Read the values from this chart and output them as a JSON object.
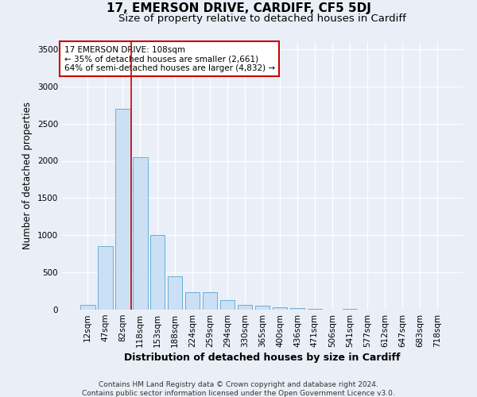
{
  "title": "17, EMERSON DRIVE, CARDIFF, CF5 5DJ",
  "subtitle": "Size of property relative to detached houses in Cardiff",
  "xlabel": "Distribution of detached houses by size in Cardiff",
  "ylabel": "Number of detached properties",
  "categories": [
    "12sqm",
    "47sqm",
    "82sqm",
    "118sqm",
    "153sqm",
    "188sqm",
    "224sqm",
    "259sqm",
    "294sqm",
    "330sqm",
    "365sqm",
    "400sqm",
    "436sqm",
    "471sqm",
    "506sqm",
    "541sqm",
    "577sqm",
    "612sqm",
    "647sqm",
    "683sqm",
    "718sqm"
  ],
  "values": [
    60,
    850,
    2700,
    2050,
    1000,
    450,
    230,
    230,
    130,
    60,
    50,
    30,
    25,
    15,
    0,
    15,
    0,
    0,
    0,
    0,
    0
  ],
  "bar_color": "#cce0f5",
  "bar_edge_color": "#6aaed6",
  "vline_x_index": 2.5,
  "vline_color": "#cc0000",
  "annotation_text": "17 EMERSON DRIVE: 108sqm\n← 35% of detached houses are smaller (2,661)\n64% of semi-detached houses are larger (4,832) →",
  "annotation_box_color": "#ffffff",
  "annotation_box_edge": "#cc0000",
  "ylim": [
    0,
    3600
  ],
  "yticks": [
    0,
    500,
    1000,
    1500,
    2000,
    2500,
    3000,
    3500
  ],
  "bg_color": "#eaeff7",
  "plot_bg_color": "#eaeff7",
  "footer": "Contains HM Land Registry data © Crown copyright and database right 2024.\nContains public sector information licensed under the Open Government Licence v3.0.",
  "title_fontsize": 11,
  "subtitle_fontsize": 9.5,
  "xlabel_fontsize": 9,
  "ylabel_fontsize": 8.5,
  "footer_fontsize": 6.5,
  "tick_fontsize": 7.5,
  "annot_fontsize": 7.5
}
